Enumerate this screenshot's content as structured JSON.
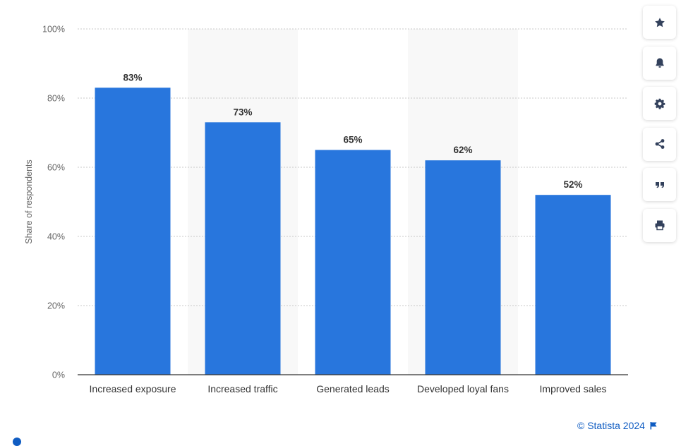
{
  "chart_data": {
    "type": "bar",
    "categories": [
      "Increased exposure",
      "Increased traffic",
      "Generated leads",
      "Developed loyal fans",
      "Improved sales"
    ],
    "values": [
      83,
      73,
      65,
      62,
      52
    ],
    "value_labels": [
      "83%",
      "73%",
      "65%",
      "62%",
      "52%"
    ],
    "title": "",
    "xlabel": "",
    "ylabel": "Share of respondents",
    "ylim": [
      0,
      100
    ],
    "yticks": [
      0,
      20,
      40,
      60,
      80,
      100
    ],
    "ytick_labels": [
      "0%",
      "20%",
      "40%",
      "60%",
      "80%",
      "100%"
    ],
    "grid": true,
    "bar_color": "#2876dd",
    "band_color": "#f8f8f8"
  },
  "toolbar": {
    "buttons": [
      {
        "name": "favorite-button",
        "icon": "star-icon"
      },
      {
        "name": "notification-button",
        "icon": "bell-icon"
      },
      {
        "name": "settings-button",
        "icon": "gear-icon"
      },
      {
        "name": "share-button",
        "icon": "share-icon"
      },
      {
        "name": "cite-button",
        "icon": "quote-icon"
      },
      {
        "name": "print-button",
        "icon": "print-icon"
      }
    ]
  },
  "credit": {
    "text": "© Statista 2024",
    "icon": "flag-icon"
  },
  "colors": {
    "accent": "#0f5cc2",
    "icon": "#33415c"
  }
}
